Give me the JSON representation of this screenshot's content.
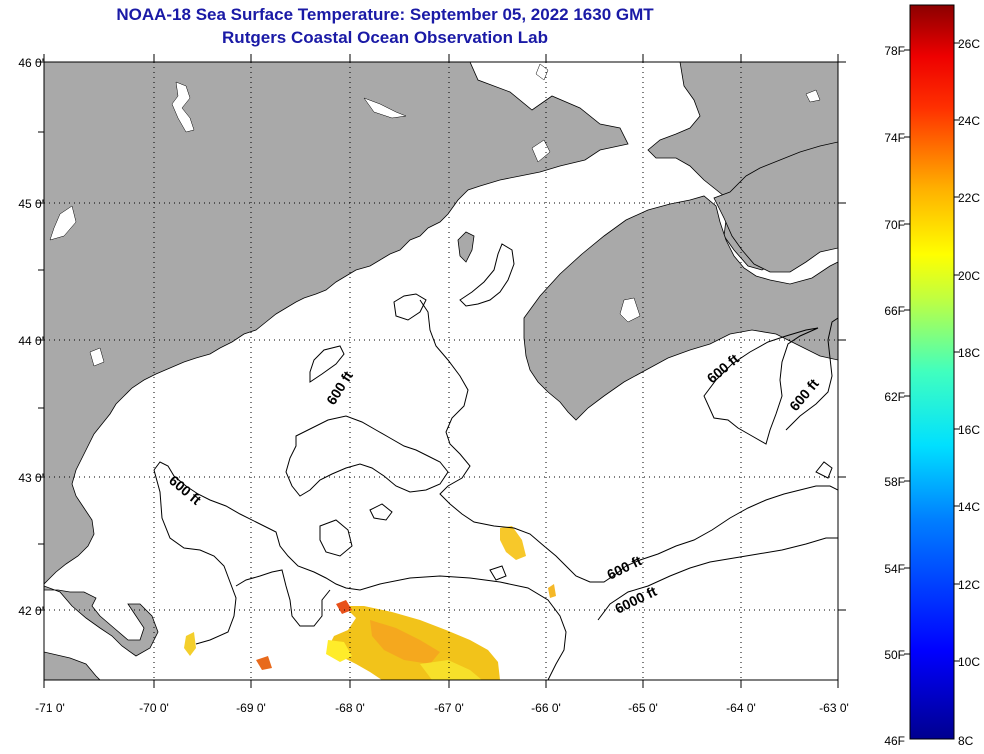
{
  "header": {
    "title_line1": "NOAA-18 Sea Surface Temperature:  September 05, 2022 1630 GMT",
    "title_line2": "Rutgers Coastal Ocean Observation Lab"
  },
  "map": {
    "x_ticks": [
      "-71 0'",
      "-70 0'",
      "-69 0'",
      "-68 0'",
      "-67 0'",
      "-66 0'",
      "-65 0'",
      "-64 0'",
      "-63 0'"
    ],
    "y_ticks": [
      "46 0'",
      "45 0'",
      "44 0'",
      "43 0'",
      "42 0'"
    ],
    "contour_labels": [
      "600 ft",
      "600 ft",
      "600 ft",
      "600 ft",
      "600 ft",
      "6000 ft"
    ],
    "colors": {
      "land": "#a9a9a9",
      "ocean": "#ffffff",
      "title": "#1a1aa6"
    }
  },
  "colorbar": {
    "f_labels": [
      "78F",
      "74F",
      "70F",
      "66F",
      "62F",
      "58F",
      "54F",
      "50F",
      "46F"
    ],
    "c_labels": [
      "26C",
      "24C",
      "22C",
      "20C",
      "18C",
      "16C",
      "14C",
      "12C",
      "10C",
      "8C"
    ]
  }
}
